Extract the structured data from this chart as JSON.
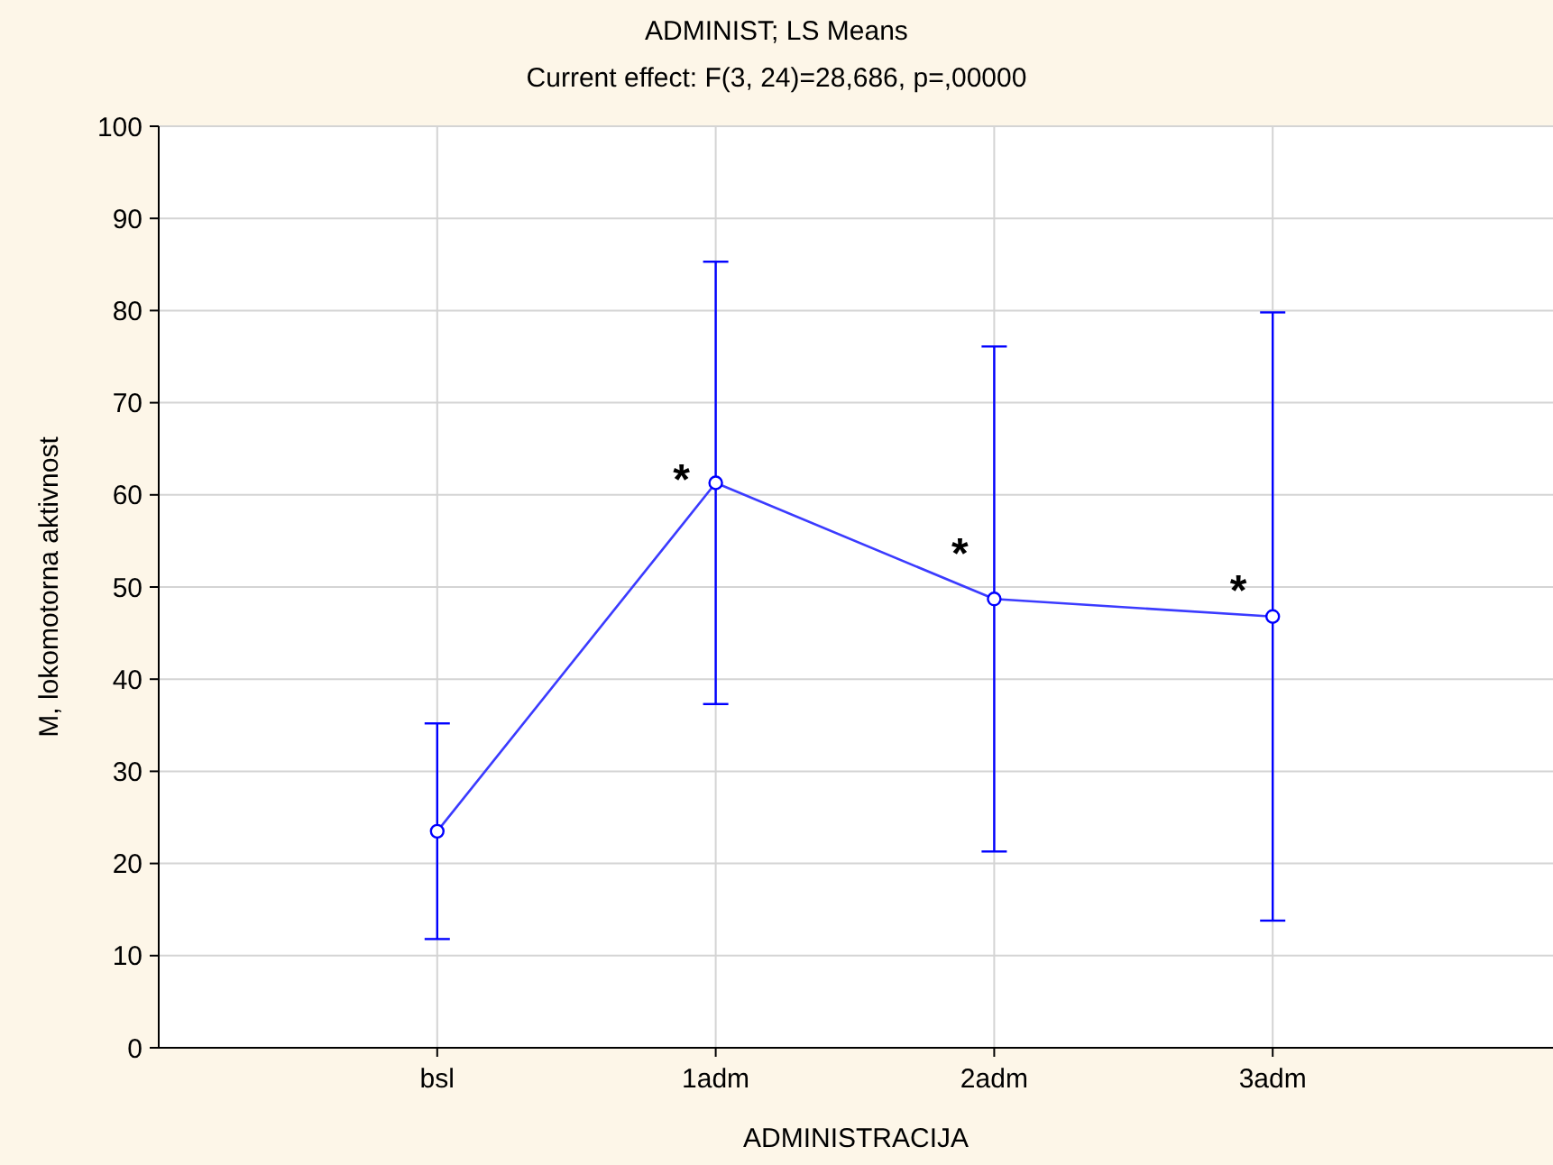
{
  "chart_data": {
    "type": "line",
    "title": "ADMINIST; LS Means",
    "subtitle": "Current effect: F(3, 24)=28,686, p=,00000",
    "xlabel": "ADMINISTRACIJA",
    "ylabel": "M, lokomotorna aktivnost",
    "categories": [
      "bsl",
      "1adm",
      "2adm",
      "3adm"
    ],
    "series": [
      {
        "color": "#3b3bff",
        "values": [
          23.5,
          61.3,
          48.7,
          46.8
        ],
        "errors": [
          11.7,
          24,
          27.4,
          33
        ]
      }
    ],
    "ylim": [
      0,
      100
    ],
    "yticks": [
      0,
      10,
      20,
      30,
      40,
      50,
      60,
      70,
      80,
      90,
      100
    ],
    "grid": true,
    "marker": "circle",
    "line_style": "solid",
    "annotations": [
      {
        "text": "*",
        "x": "1adm",
        "y": 62
      },
      {
        "text": "*",
        "x": "2adm",
        "y": 54
      },
      {
        "text": "*",
        "x": "3adm",
        "y": 50
      }
    ]
  }
}
